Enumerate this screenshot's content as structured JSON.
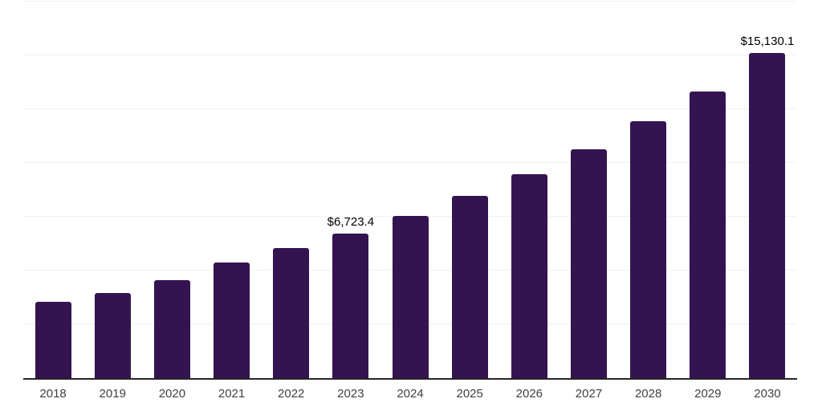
{
  "chart_data": {
    "type": "bar",
    "categories": [
      "2018",
      "2019",
      "2020",
      "2021",
      "2022",
      "2023",
      "2024",
      "2025",
      "2026",
      "2027",
      "2028",
      "2029",
      "2030"
    ],
    "values": [
      3530,
      3970,
      4540,
      5370,
      6040,
      6723.4,
      7520,
      8480,
      9480,
      10620,
      11950,
      13320,
      15130.1
    ],
    "data_labels": {
      "2023": "$6,723.4",
      "2030": "$15,130.1"
    },
    "title": "",
    "xlabel": "",
    "ylabel": "",
    "ylim": [
      0,
      17500
    ],
    "gridline_interval": 2500,
    "grid": "horizontal-only",
    "legend": "none",
    "colors": {
      "bar": "#341450",
      "axis_line": "#262626",
      "gridline": "#f1f1f1",
      "value_label": "#000000",
      "tick_label": "#404040",
      "background": "#ffffff"
    }
  }
}
